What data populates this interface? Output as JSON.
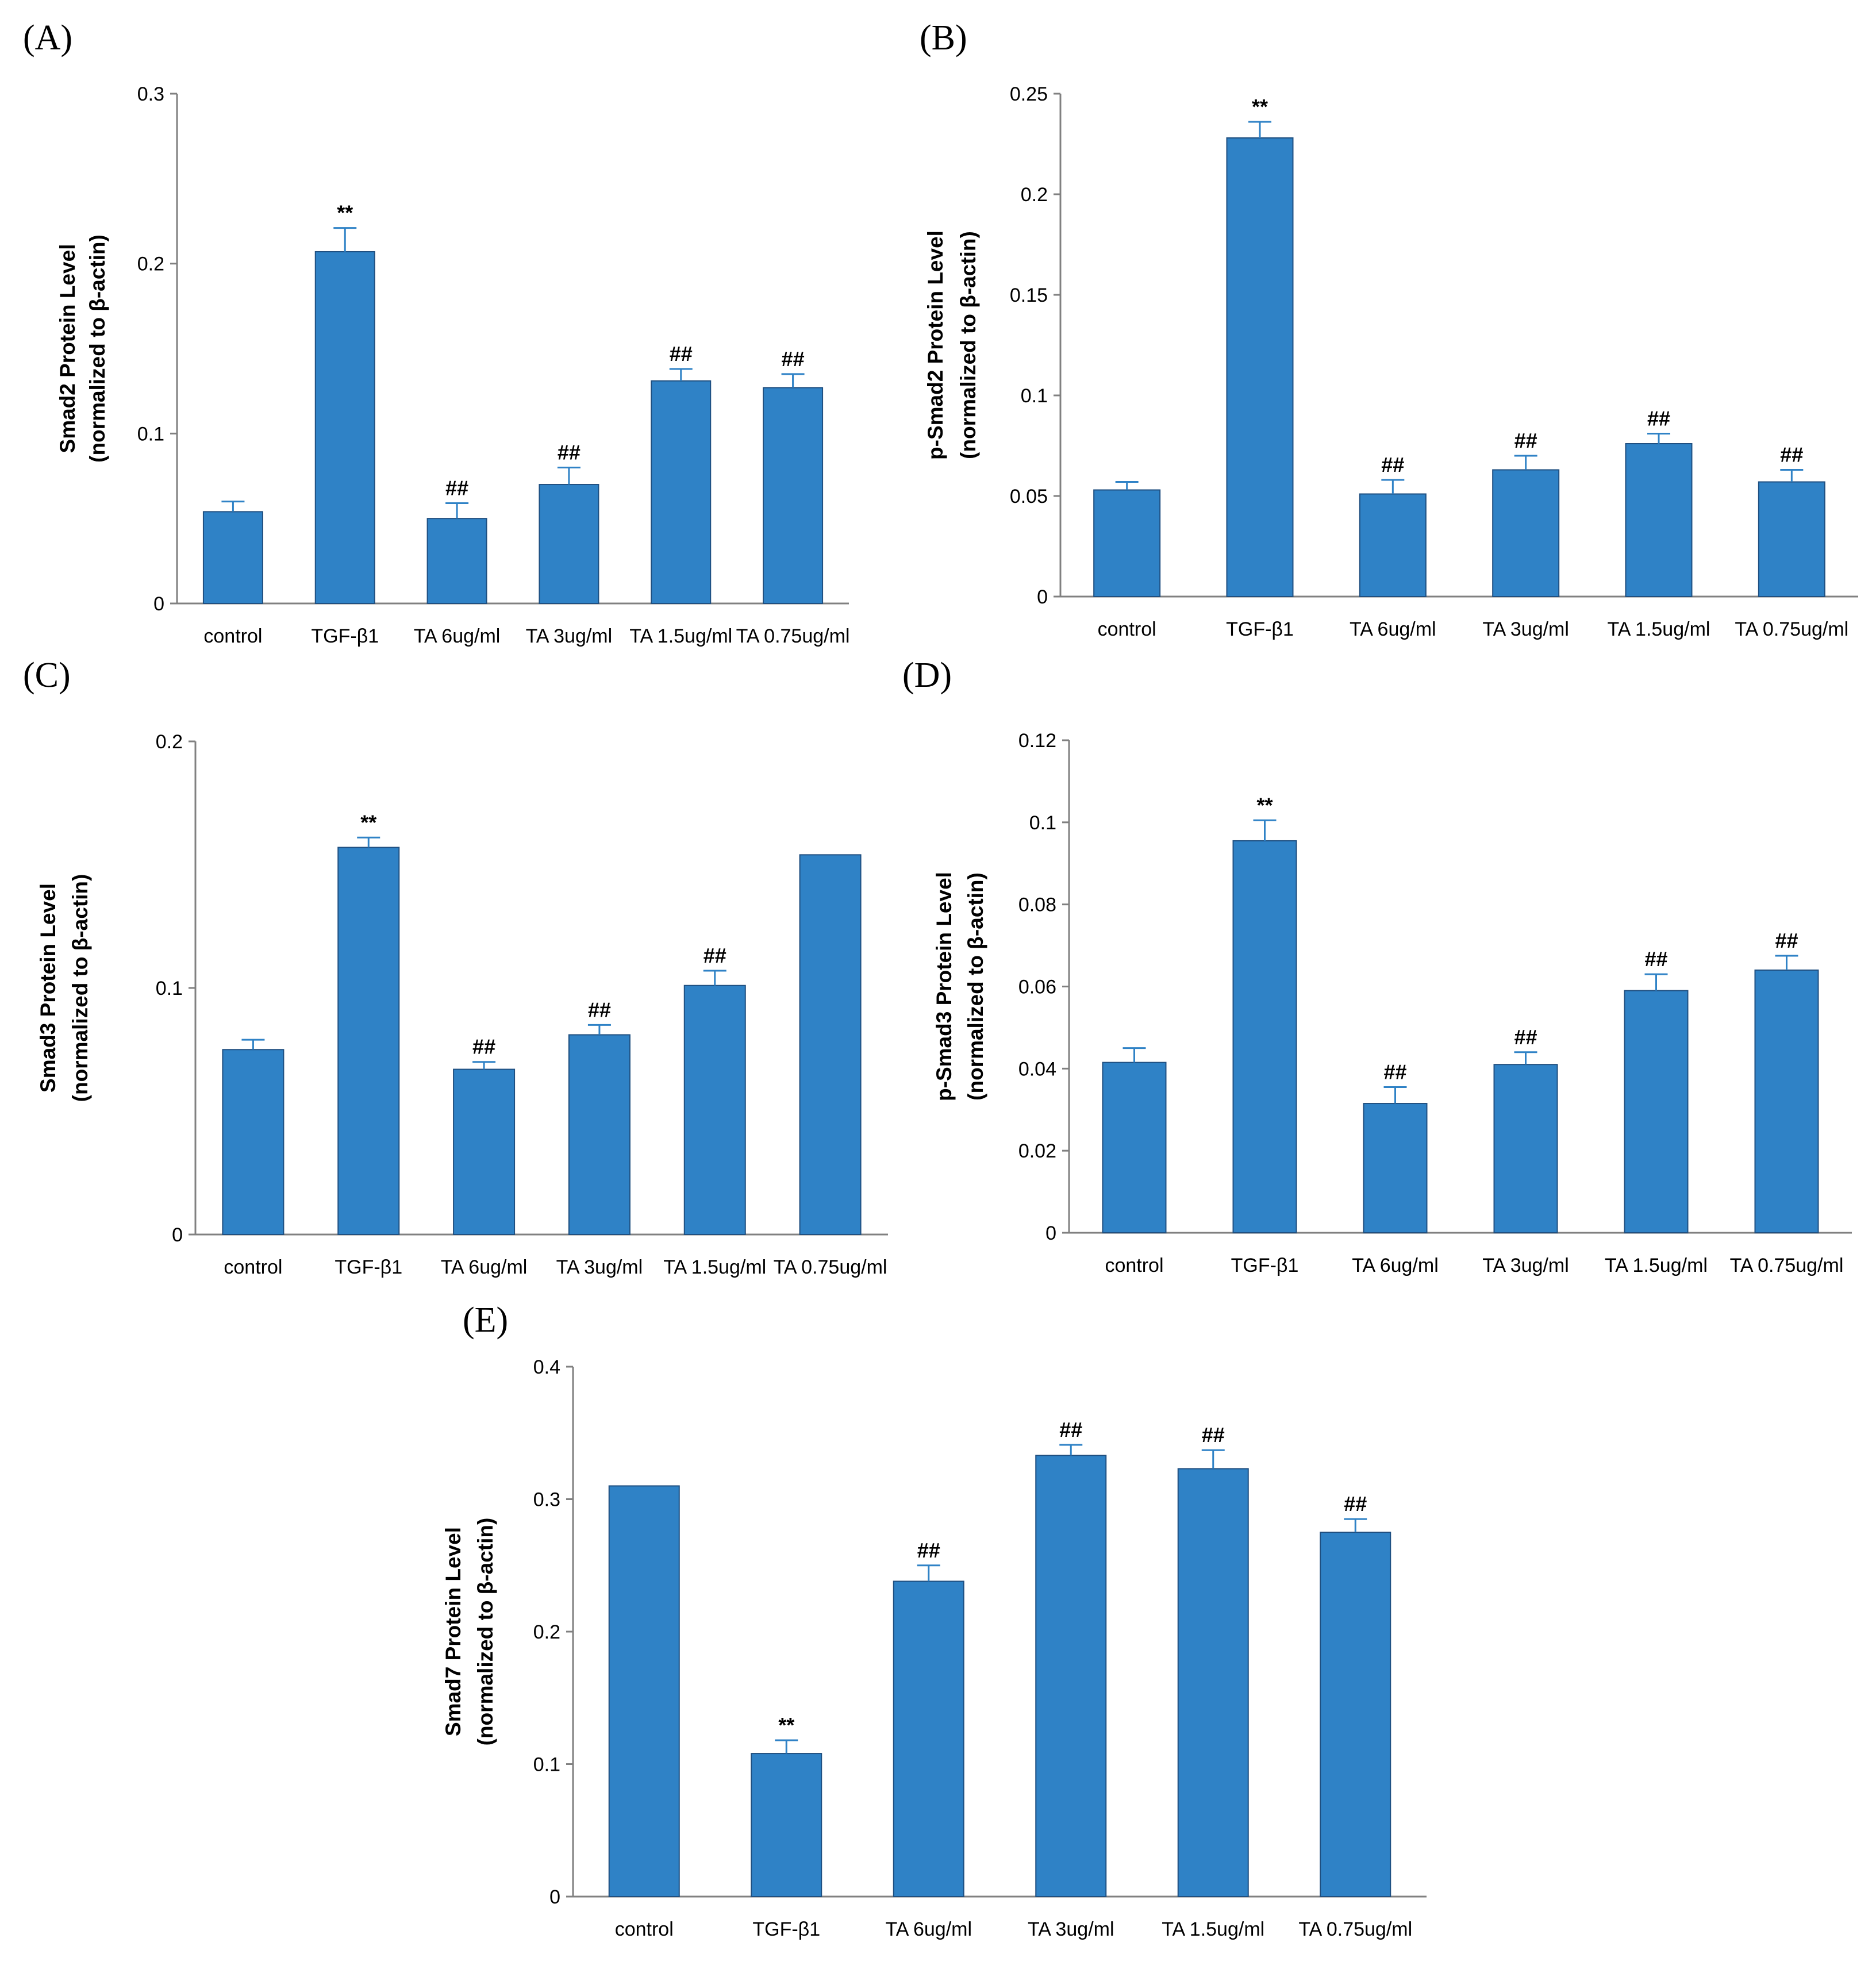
{
  "colors": {
    "bar": "#2f82c6",
    "bar_edge": "#1f4f80",
    "axis": "#808080",
    "error": "#2f82c6"
  },
  "chart_data": [
    {
      "id": "A",
      "panel_label": "(A)",
      "type": "bar",
      "categories": [
        "control",
        "TGF-β1",
        "TA 6ug/ml",
        "TA 3ug/ml",
        "TA 1.5ug/ml",
        "TA 0.75ug/ml"
      ],
      "values": [
        0.054,
        0.207,
        0.05,
        0.07,
        0.131,
        0.127
      ],
      "errors": [
        0.006,
        0.014,
        0.009,
        0.01,
        0.007,
        0.008
      ],
      "annotations": [
        "",
        "**",
        "##",
        "##",
        "##",
        "##"
      ],
      "ylabel_line1": "Smad2 Protein Level",
      "ylabel_line2": "(normalized to β-actin)",
      "ylim": [
        0,
        0.3
      ],
      "yticks": [
        {
          "v": 0,
          "label": "0"
        },
        {
          "v": 0.1,
          "label": "0.1"
        },
        {
          "v": 0.2,
          "label": "0.2"
        },
        {
          "v": 0.3,
          "label": "0.3"
        }
      ]
    },
    {
      "id": "B",
      "panel_label": "(B)",
      "type": "bar",
      "categories": [
        "control",
        "TGF-β1",
        "TA 6ug/ml",
        "TA 3ug/ml",
        "TA 1.5ug/ml",
        "TA 0.75ug/ml"
      ],
      "values": [
        0.053,
        0.228,
        0.051,
        0.063,
        0.076,
        0.057
      ],
      "errors": [
        0.004,
        0.008,
        0.007,
        0.007,
        0.005,
        0.006
      ],
      "annotations": [
        "",
        "**",
        "##",
        "##",
        "##",
        "##"
      ],
      "ylabel_line1": "p-Smad2 Protein Level",
      "ylabel_line2": "(normalized to β-actin)",
      "ylim": [
        0,
        0.25
      ],
      "yticks": [
        {
          "v": 0,
          "label": "0"
        },
        {
          "v": 0.05,
          "label": "0.05"
        },
        {
          "v": 0.1,
          "label": "0.1"
        },
        {
          "v": 0.15,
          "label": "0.15"
        },
        {
          "v": 0.2,
          "label": "0.2"
        },
        {
          "v": 0.25,
          "label": "0.25"
        }
      ]
    },
    {
      "id": "C",
      "panel_label": "(C)",
      "type": "bar",
      "categories": [
        "control",
        "TGF-β1",
        "TA 6ug/ml",
        "TA 3ug/ml",
        "TA 1.5ug/ml",
        "TA 0.75ug/ml"
      ],
      "values": [
        0.075,
        0.157,
        0.067,
        0.081,
        0.101,
        0.154
      ],
      "errors": [
        0.004,
        0.004,
        0.003,
        0.004,
        0.006,
        0
      ],
      "annotations": [
        "",
        "**",
        "##",
        "##",
        "##",
        ""
      ],
      "ylabel_line1": "Smad3 Protein Level",
      "ylabel_line2": "(normalized to β-actin)",
      "ylim": [
        0,
        0.2
      ],
      "yticks": [
        {
          "v": 0,
          "label": "0"
        },
        {
          "v": 0.1,
          "label": "0.1"
        },
        {
          "v": 0.2,
          "label": "0.2"
        }
      ]
    },
    {
      "id": "D",
      "panel_label": "(D)",
      "type": "bar",
      "categories": [
        "control",
        "TGF-β1",
        "TA 6ug/ml",
        "TA 3ug/ml",
        "TA 1.5ug/ml",
        "TA 0.75ug/ml"
      ],
      "values": [
        0.0415,
        0.0955,
        0.0315,
        0.041,
        0.059,
        0.064
      ],
      "errors": [
        0.0035,
        0.005,
        0.004,
        0.003,
        0.004,
        0.0035
      ],
      "annotations": [
        "",
        "**",
        "##",
        "##",
        "##",
        "##"
      ],
      "ylabel_line1": "p-Smad3 Protein Level",
      "ylabel_line2": "(normalized to β-actin)",
      "ylim": [
        0,
        0.12
      ],
      "yticks": [
        {
          "v": 0,
          "label": "0"
        },
        {
          "v": 0.02,
          "label": "0.02"
        },
        {
          "v": 0.04,
          "label": "0.04"
        },
        {
          "v": 0.06,
          "label": "0.06"
        },
        {
          "v": 0.08,
          "label": "0.08"
        },
        {
          "v": 0.1,
          "label": "0.1"
        },
        {
          "v": 0.12,
          "label": "0.12"
        }
      ]
    },
    {
      "id": "E",
      "panel_label": "(E)",
      "type": "bar",
      "categories": [
        "control",
        "TGF-β1",
        "TA 6ug/ml",
        "TA 3ug/ml",
        "TA 1.5ug/ml",
        "TA 0.75ug/ml"
      ],
      "values": [
        0.31,
        0.108,
        0.238,
        0.333,
        0.323,
        0.275
      ],
      "errors": [
        0,
        0.01,
        0.012,
        0.008,
        0.014,
        0.01
      ],
      "annotations": [
        "",
        "**",
        "##",
        "##",
        "##",
        "##"
      ],
      "ylabel_line1": "Smad7 Protein Level",
      "ylabel_line2": "(normalized to β-actin)",
      "ylim": [
        0,
        0.4
      ],
      "yticks": [
        {
          "v": 0,
          "label": "0"
        },
        {
          "v": 0.1,
          "label": "0.1"
        },
        {
          "v": 0.2,
          "label": "0.2"
        },
        {
          "v": 0.3,
          "label": "0.3"
        },
        {
          "v": 0.4,
          "label": "0.4"
        }
      ]
    }
  ]
}
